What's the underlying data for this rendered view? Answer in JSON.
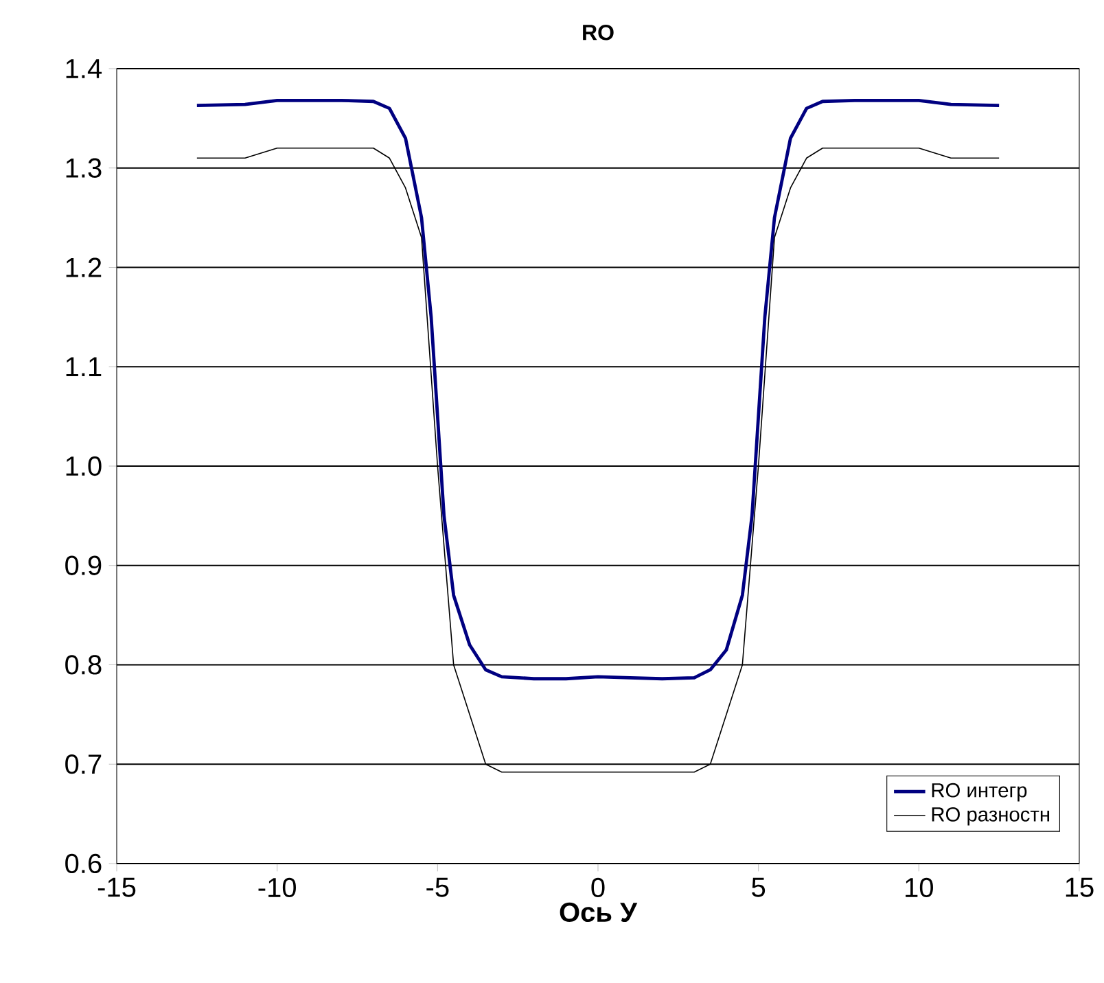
{
  "chart_data": {
    "type": "line",
    "title": "RO",
    "xlabel": "Ось У",
    "xlim": [
      -15,
      15
    ],
    "xticks": [
      -15,
      -10,
      -5,
      0,
      5,
      10,
      15
    ],
    "ylim": [
      0.6,
      1.4
    ],
    "yticks": [
      {
        "value": 0.6,
        "label": "0.6"
      },
      {
        "value": 0.7,
        "label": "0.7"
      },
      {
        "value": 0.8,
        "label": "0.8"
      },
      {
        "value": 0.9,
        "label": "0.9"
      },
      {
        "value": 1.0,
        "label": "1.0"
      },
      {
        "value": 1.1,
        "label": "1.1"
      },
      {
        "value": 1.2,
        "label": "1.2"
      },
      {
        "value": 1.3,
        "label": "1.3"
      },
      {
        "value": 1.4,
        "label": "1.4"
      }
    ],
    "grid": "y",
    "legend": "bottom right",
    "marker": "none",
    "line_style": "solid",
    "series": [
      {
        "name": "RO интегр",
        "color": "#000080",
        "x": [
          -12.5,
          -11,
          -10,
          -8,
          -7,
          -6.5,
          -6,
          -5.5,
          -5.2,
          -5,
          -4.8,
          -4.5,
          -4,
          -3.5,
          -3,
          -2,
          -1,
          0,
          1,
          2,
          3,
          3.5,
          4,
          4.5,
          4.8,
          5,
          5.2,
          5.5,
          6,
          6.5,
          7,
          8,
          10,
          11,
          12.5
        ],
        "values": [
          1.363,
          1.364,
          1.368,
          1.368,
          1.367,
          1.36,
          1.33,
          1.25,
          1.15,
          1.05,
          0.95,
          0.87,
          0.82,
          0.795,
          0.788,
          0.786,
          0.786,
          0.788,
          0.787,
          0.786,
          0.787,
          0.795,
          0.815,
          0.87,
          0.95,
          1.05,
          1.15,
          1.25,
          1.33,
          1.36,
          1.367,
          1.368,
          1.368,
          1.364,
          1.363
        ]
      },
      {
        "name": "RO разностн",
        "color": "#000000",
        "x": [
          -12.5,
          -11,
          -10,
          -8,
          -7,
          -6.5,
          -6,
          -5.5,
          -5,
          -4.5,
          -3.5,
          -3,
          0,
          3,
          3.5,
          4.5,
          5,
          5.5,
          6,
          6.5,
          7,
          8,
          10,
          11,
          12.5
        ],
        "values": [
          1.31,
          1.31,
          1.32,
          1.32,
          1.32,
          1.31,
          1.28,
          1.23,
          1.0,
          0.8,
          0.7,
          0.692,
          0.692,
          0.692,
          0.7,
          0.8,
          1.0,
          1.23,
          1.28,
          1.31,
          1.32,
          1.32,
          1.32,
          1.31,
          1.31
        ]
      }
    ]
  }
}
